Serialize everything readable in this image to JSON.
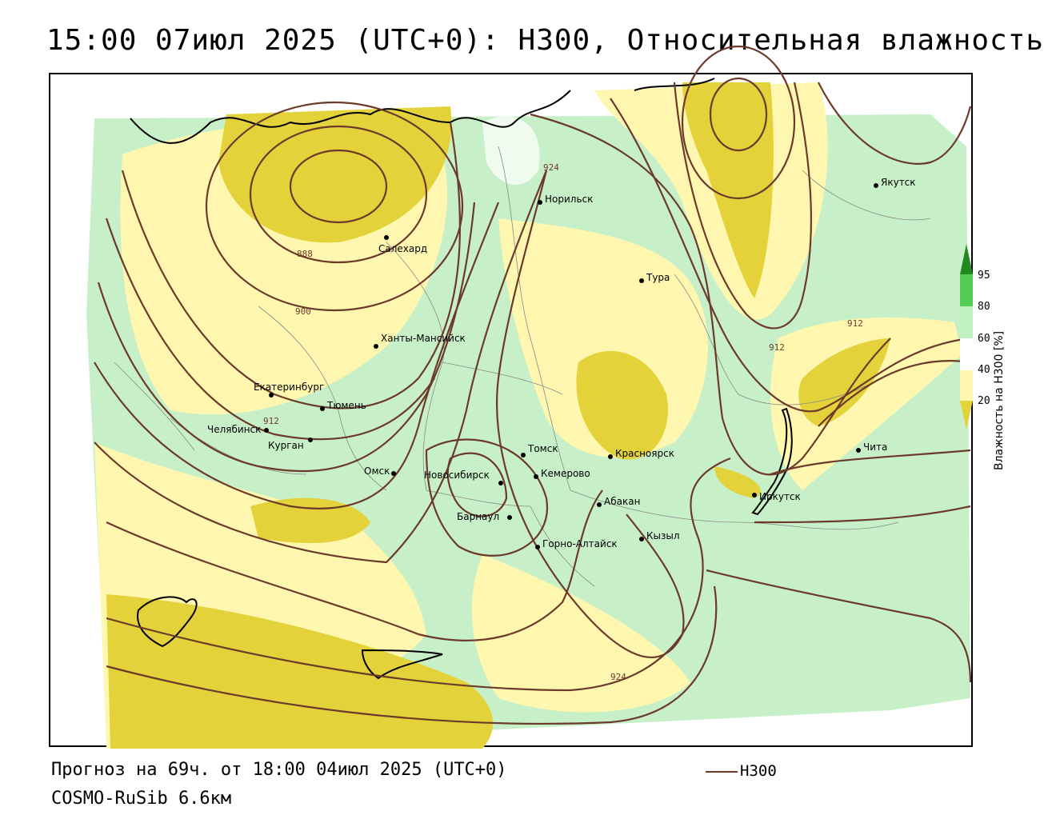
{
  "title": "15:00 07июл 2025 (UTC+0): H300, Относительная влажность",
  "footer": {
    "forecast": "Прогноз на 69ч. от 18:00 04июл 2025 (UTC+0)",
    "model": "COSMO-RuSib 6.6км"
  },
  "legend": {
    "line_label": "H300",
    "line_color": "#6b3a2a"
  },
  "colorbar": {
    "title": "Влажность на H300 [%]",
    "ticks": [
      "95",
      "80",
      "60",
      "40",
      "20"
    ],
    "colors": {
      "c95": "#1f8a1f",
      "c80": "#55cc55",
      "c60": "#bff0bf",
      "c40": "#fff7b0",
      "c20": "#e3d23a",
      "lowest": "#c9b500"
    }
  },
  "cities": [
    {
      "name": "Якутск"
    },
    {
      "name": "Норильск"
    },
    {
      "name": "Салехард"
    },
    {
      "name": "Тура"
    },
    {
      "name": "Ханты-Мансийск"
    },
    {
      "name": "Екатеринбург"
    },
    {
      "name": "Тюмень"
    },
    {
      "name": "Челябинск"
    },
    {
      "name": "Курган"
    },
    {
      "name": "Омск"
    },
    {
      "name": "Томск"
    },
    {
      "name": "Красноярск"
    },
    {
      "name": "Новосибирск"
    },
    {
      "name": "Кемерово"
    },
    {
      "name": "Абакан"
    },
    {
      "name": "Барнаул"
    },
    {
      "name": "Горно-Алтайск"
    },
    {
      "name": "Кызыл"
    },
    {
      "name": "Иркутск"
    },
    {
      "name": "Чита"
    }
  ],
  "isoline_labels": [
    "888",
    "900",
    "912",
    "924",
    "912",
    "912",
    "924"
  ]
}
